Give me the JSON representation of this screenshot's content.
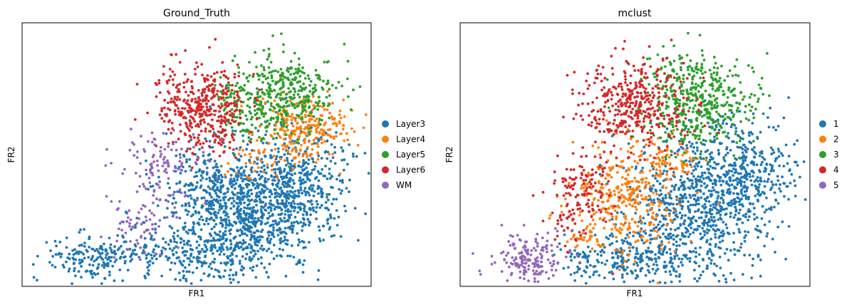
{
  "chart_data": [
    {
      "type": "scatter",
      "title": "Ground_Truth",
      "xlabel": "FR1",
      "ylabel": "FR2",
      "grid": false,
      "legend_position": "right",
      "point_estimate": "approximate cluster blobs reconstructed from the embedding",
      "series": [
        {
          "name": "Layer3",
          "color": "#1f77b4",
          "blobs": [
            {
              "cx": 340,
              "cy": 280,
              "sx": 55,
              "sy": 48,
              "n": 780
            },
            {
              "cx": 420,
              "cy": 230,
              "sx": 40,
              "sy": 40,
              "n": 420
            },
            {
              "cx": 290,
              "cy": 240,
              "sx": 40,
              "sy": 35,
              "n": 220
            },
            {
              "cx": 250,
              "cy": 340,
              "sx": 35,
              "sy": 25,
              "n": 150
            },
            {
              "cx": 100,
              "cy": 345,
              "sx": 35,
              "sy": 18,
              "n": 170
            },
            {
              "cx": 195,
              "cy": 330,
              "sx": 25,
              "sy": 25,
              "n": 60
            }
          ]
        },
        {
          "name": "Layer4",
          "color": "#ff7f0e",
          "blobs": [
            {
              "cx": 430,
              "cy": 150,
              "sx": 35,
              "sy": 25,
              "n": 260
            },
            {
              "cx": 360,
              "cy": 200,
              "sx": 30,
              "sy": 15,
              "n": 40
            }
          ]
        },
        {
          "name": "Layer5",
          "color": "#2ca02c",
          "blobs": [
            {
              "cx": 390,
              "cy": 100,
              "sx": 45,
              "sy": 30,
              "n": 420
            },
            {
              "cx": 330,
              "cy": 140,
              "sx": 20,
              "sy": 20,
              "n": 50
            }
          ]
        },
        {
          "name": "Layer6",
          "color": "#d62728",
          "blobs": [
            {
              "cx": 270,
              "cy": 110,
              "sx": 35,
              "sy": 30,
              "n": 350
            },
            {
              "cx": 290,
              "cy": 165,
              "sx": 25,
              "sy": 15,
              "n": 50
            }
          ]
        },
        {
          "name": "WM",
          "color": "#9467bd",
          "blobs": [
            {
              "cx": 205,
              "cy": 210,
              "sx": 30,
              "sy": 25,
              "n": 110
            },
            {
              "cx": 175,
              "cy": 295,
              "sx": 25,
              "sy": 25,
              "n": 60
            }
          ]
        }
      ]
    },
    {
      "type": "scatter",
      "title": "mclust",
      "xlabel": "FR1",
      "ylabel": "FR2",
      "grid": false,
      "legend_position": "right",
      "point_estimate": "approximate cluster blobs reconstructed from the embedding",
      "series": [
        {
          "name": "1",
          "color": "#1f77b4",
          "blobs": [
            {
              "cx": 360,
              "cy": 270,
              "sx": 55,
              "sy": 55,
              "n": 800
            },
            {
              "cx": 430,
              "cy": 210,
              "sx": 40,
              "sy": 35,
              "n": 300
            },
            {
              "cx": 260,
              "cy": 345,
              "sx": 45,
              "sy": 20,
              "n": 200
            },
            {
              "cx": 180,
              "cy": 350,
              "sx": 20,
              "sy": 12,
              "n": 40
            }
          ]
        },
        {
          "name": "2",
          "color": "#ff7f0e",
          "blobs": [
            {
              "cx": 250,
              "cy": 250,
              "sx": 40,
              "sy": 40,
              "n": 340
            },
            {
              "cx": 320,
              "cy": 195,
              "sx": 25,
              "sy": 15,
              "n": 60
            },
            {
              "cx": 185,
              "cy": 305,
              "sx": 15,
              "sy": 15,
              "n": 30
            }
          ]
        },
        {
          "name": "3",
          "color": "#2ca02c",
          "blobs": [
            {
              "cx": 360,
              "cy": 110,
              "sx": 45,
              "sy": 35,
              "n": 480
            }
          ]
        },
        {
          "name": "4",
          "color": "#d62728",
          "blobs": [
            {
              "cx": 260,
              "cy": 115,
              "sx": 40,
              "sy": 35,
              "n": 400
            },
            {
              "cx": 180,
              "cy": 240,
              "sx": 25,
              "sy": 30,
              "n": 120
            },
            {
              "cx": 160,
              "cy": 300,
              "sx": 15,
              "sy": 15,
              "n": 25
            }
          ]
        },
        {
          "name": "5",
          "color": "#9467bd",
          "blobs": [
            {
              "cx": 95,
              "cy": 345,
              "sx": 30,
              "sy": 18,
              "n": 170
            }
          ]
        }
      ]
    }
  ]
}
